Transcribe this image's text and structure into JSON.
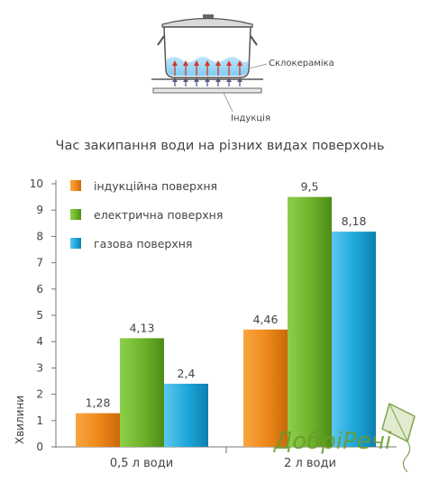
{
  "diagram": {
    "ceramic_label": "Склокераміка",
    "induction_label": "Індукція"
  },
  "logo": {
    "text": "ДобріРечі"
  },
  "chart_data": {
    "type": "bar",
    "title": "Час закипання води на різних видах поверхонь",
    "ylabel": "Хвилини",
    "xlabel": "",
    "ylim": [
      0,
      10
    ],
    "yticks": [
      0,
      1,
      2,
      3,
      4,
      5,
      6,
      7,
      8,
      9,
      10
    ],
    "categories": [
      "0,5 л води",
      "2 л води"
    ],
    "series": [
      {
        "name": "індукційна поверхня",
        "values": [
          1.28,
          4.46
        ],
        "labels": [
          "1,28",
          "4,46"
        ],
        "color": "#f08a1c"
      },
      {
        "name": "електрична поверхня",
        "values": [
          4.13,
          9.5
        ],
        "labels": [
          "4,13",
          "9,5"
        ],
        "color": "#6fb52c"
      },
      {
        "name": "газова поверхня",
        "values": [
          2.4,
          8.18
        ],
        "labels": [
          "2,4",
          "8,18"
        ],
        "color": "#1ea8dc"
      }
    ],
    "legend": "top-left",
    "grid": false
  }
}
